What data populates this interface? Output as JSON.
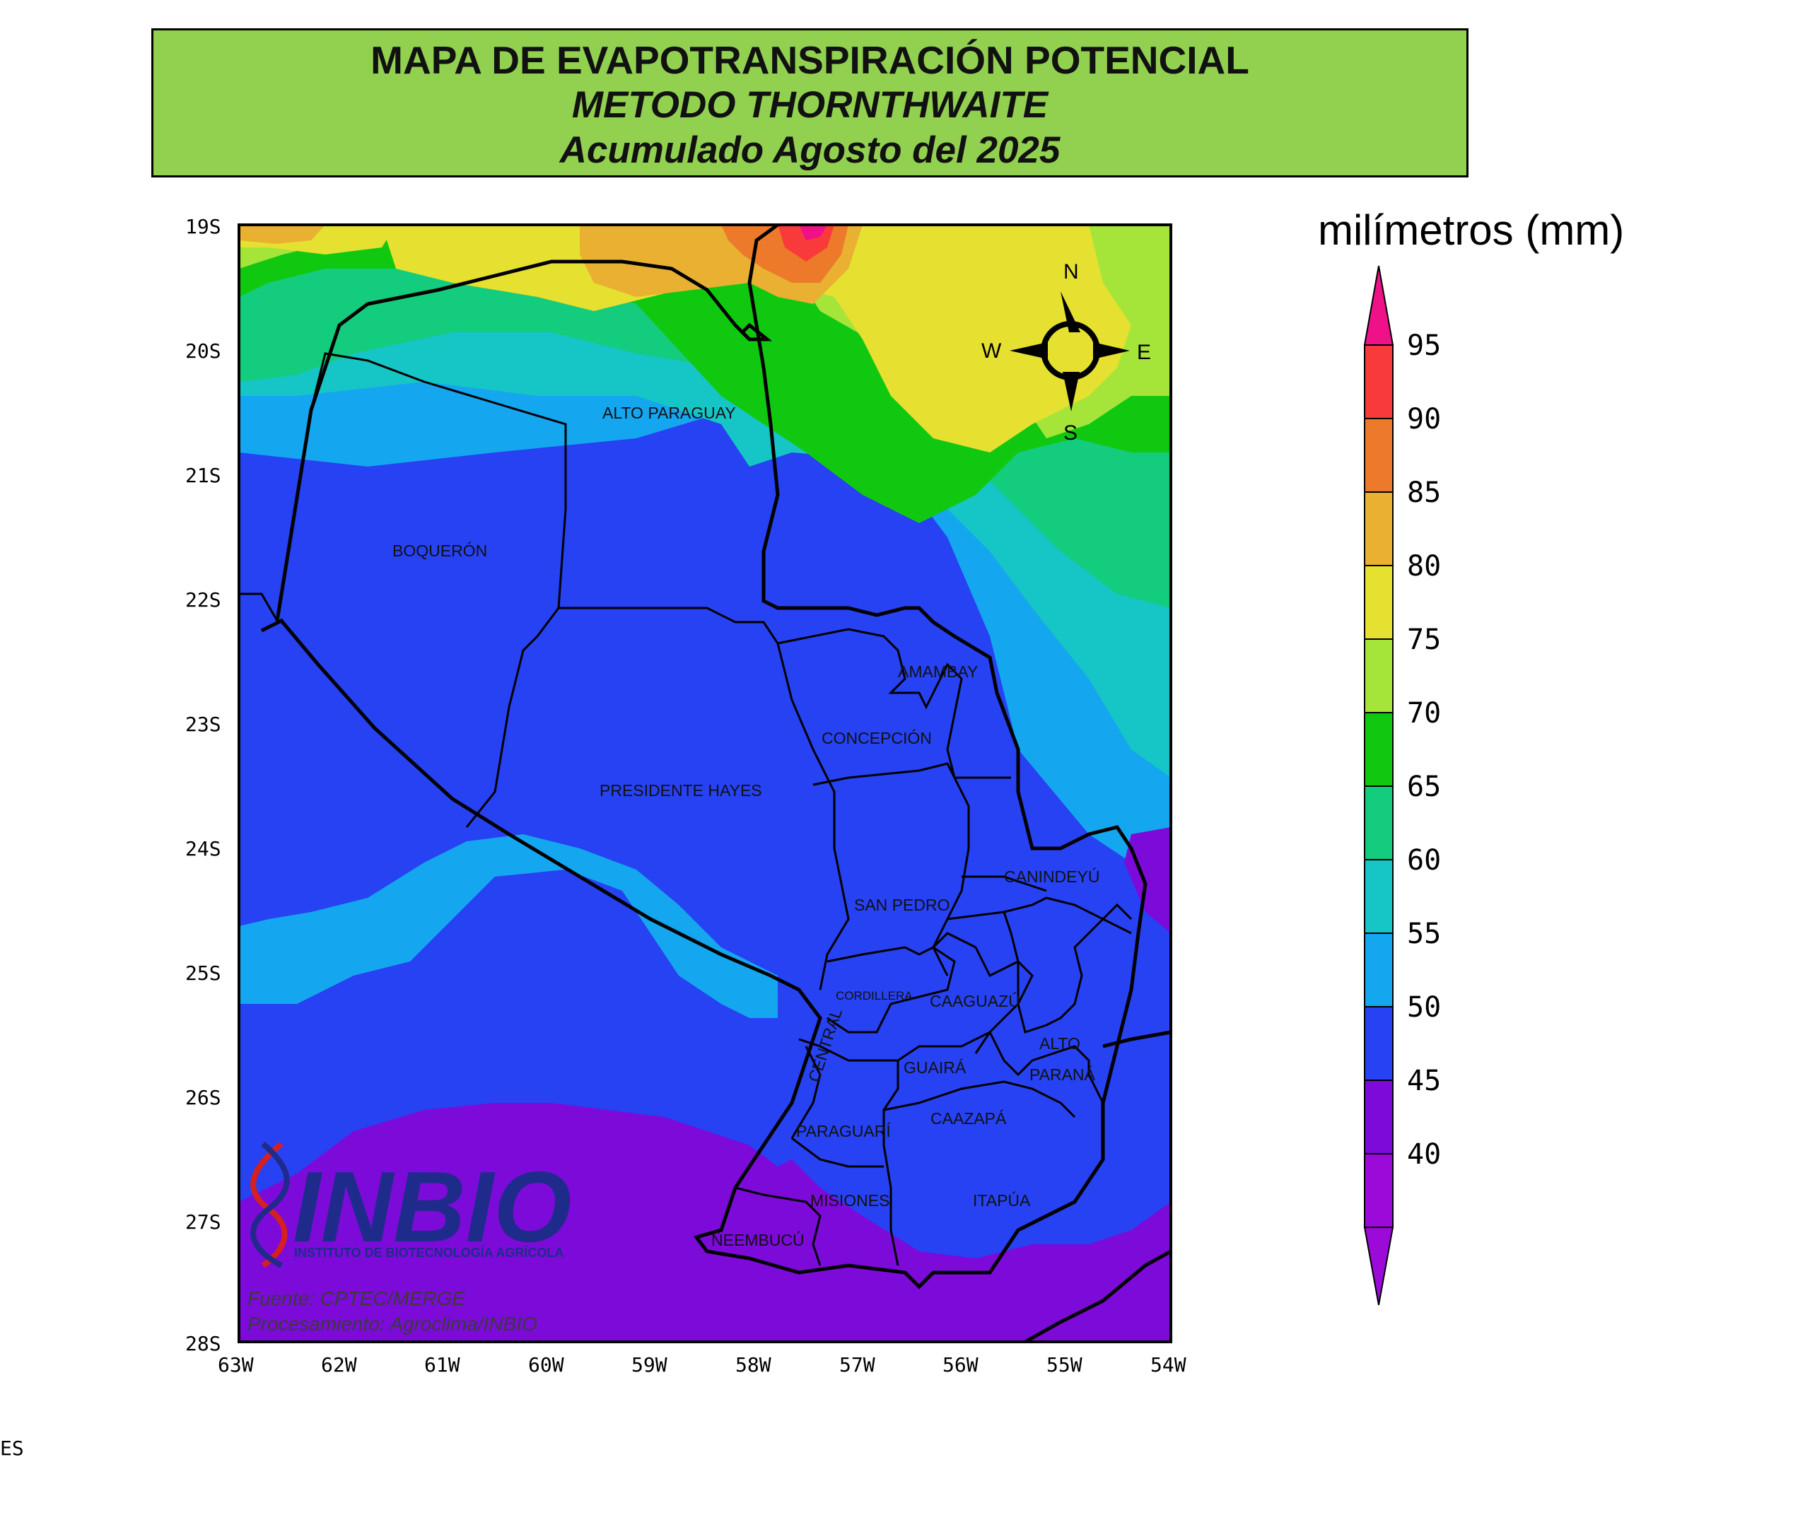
{
  "title": {
    "line1": "MAPA DE EVAPOTRANSPIRACIÓN POTENCIAL",
    "line2": "METODO THORNTHWAITE",
    "line3": "Acumulado Agosto del 2025"
  },
  "map": {
    "lat_labels": [
      "19S",
      "20S",
      "21S",
      "22S",
      "23S",
      "24S",
      "25S",
      "26S",
      "27S",
      "28S"
    ],
    "lon_labels": [
      "63W",
      "62W",
      "61W",
      "60W",
      "59W",
      "58W",
      "57W",
      "56W",
      "55W",
      "54W"
    ],
    "departments": [
      "ALTO PARAGUAY",
      "BOQUERÓN",
      "PRESIDENTE HAYES",
      "AMAMBAY",
      "CONCEPCIÓN",
      "SAN PEDRO",
      "CANINDEYÚ",
      "CORDILLERA",
      "CAAGUAZÚ",
      "CENTRAL",
      "ALTO",
      "PARANÁ",
      "GUAIRÁ",
      "CAAZAPÁ",
      "PARAGUARÍ",
      "MISIONES",
      "ITAPÚA",
      "ÑEEMBUCÚ"
    ],
    "compass": {
      "n": "N",
      "s": "S",
      "e": "E",
      "w": "W"
    },
    "credits": {
      "source": "Fuente: CPTEC/MERGE",
      "processing": "Procesamiento: Agroclima/INBIO"
    },
    "logo": {
      "name": "INBIO",
      "subtitle": "INSTITUTO DE BIOTECNOLOGÍA AGRÍCOLA",
      "colors": [
        "#1f2b8a",
        "#d42020"
      ]
    }
  },
  "legend": {
    "units": "milímetros (mm)",
    "levels": [
      "95",
      "90",
      "85",
      "80",
      "75",
      "70",
      "65",
      "60",
      "55",
      "50",
      "45",
      "40"
    ],
    "colors": [
      "#ee1188",
      "#f93a3a",
      "#ec7a2a",
      "#e9b032",
      "#e6e030",
      "#a5e53a",
      "#11c811",
      "#14cc7d",
      "#16c5c5",
      "#14a6ef",
      "#2642f2",
      "#7c0ad9",
      "#9b0ad9"
    ]
  },
  "edge_text": "ES"
}
